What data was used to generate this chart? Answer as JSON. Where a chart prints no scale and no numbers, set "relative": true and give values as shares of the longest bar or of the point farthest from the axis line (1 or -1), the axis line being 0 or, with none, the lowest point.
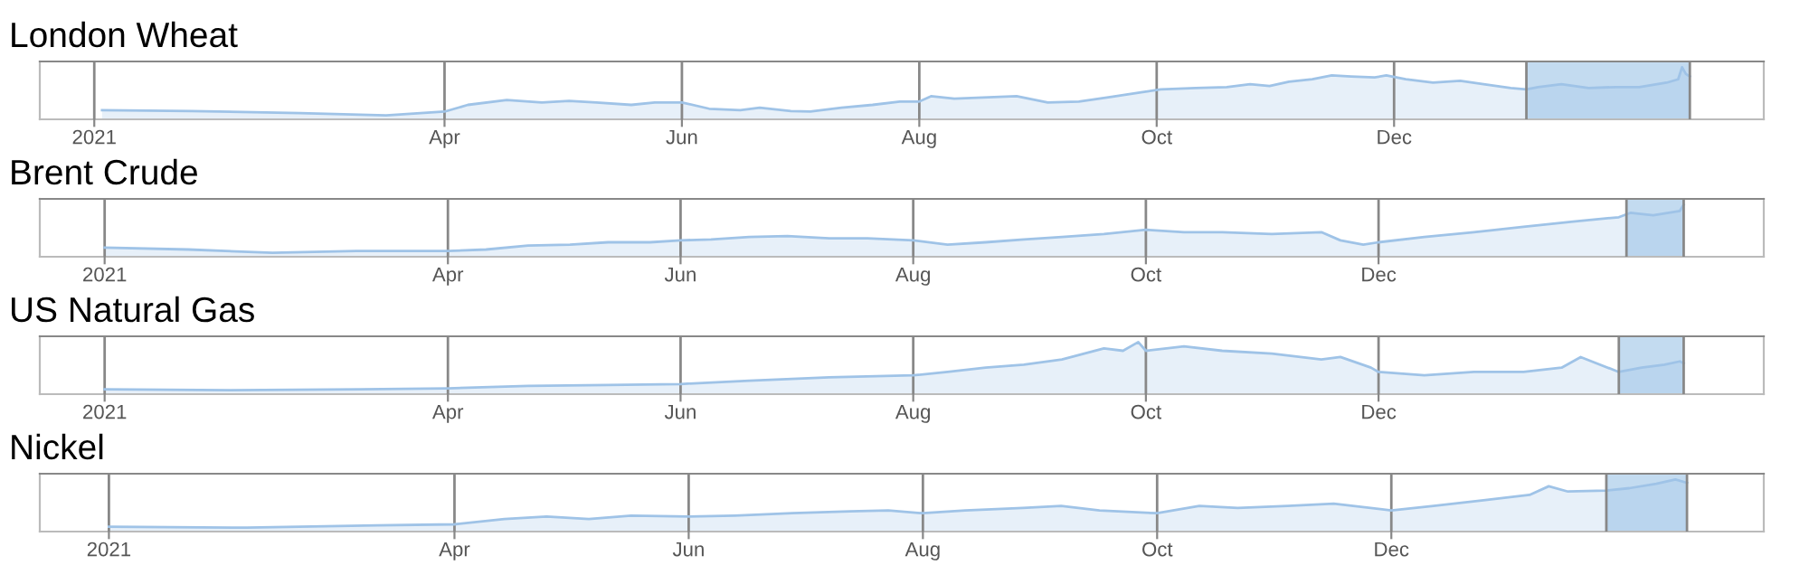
{
  "chart_data": [
    {
      "type": "area",
      "title": "London Wheat",
      "relative": true,
      "xlim": [
        "2020-12-18",
        "2022-03-06"
      ],
      "xticks": [
        {
          "value": "2021-01-01",
          "label": "2021"
        },
        {
          "value": "2021-04-01",
          "label": "Apr"
        },
        {
          "value": "2021-06-01",
          "label": "Jun"
        },
        {
          "value": "2021-08-01",
          "label": "Aug"
        },
        {
          "value": "2021-10-01",
          "label": "Oct"
        },
        {
          "value": "2021-12-01",
          "label": "Dec"
        }
      ],
      "grid": "x",
      "tick_labels": "x",
      "bands": [
        {
          "axis": "x",
          "from": "2022-01-04",
          "to": "2022-02-15",
          "color": "#c3dbf0"
        }
      ],
      "series": [
        {
          "color": "#9fc3e7",
          "x": [
            "2021-01-03",
            "2021-01-26",
            "2021-02-23",
            "2021-03-17",
            "2021-04-01",
            "2021-04-07",
            "2021-04-17",
            "2021-04-26",
            "2021-05-03",
            "2021-05-10",
            "2021-05-19",
            "2021-05-25",
            "2021-06-01",
            "2021-06-08",
            "2021-06-16",
            "2021-06-21",
            "2021-06-29",
            "2021-07-04",
            "2021-07-12",
            "2021-07-20",
            "2021-07-27",
            "2021-08-01",
            "2021-08-04",
            "2021-08-10",
            "2021-08-26",
            "2021-09-03",
            "2021-09-11",
            "2021-09-19",
            "2021-09-27",
            "2021-10-02",
            "2021-10-11",
            "2021-10-19",
            "2021-10-25",
            "2021-10-30",
            "2021-11-04",
            "2021-11-10",
            "2021-11-15",
            "2021-11-20",
            "2021-11-26",
            "2021-11-29",
            "2021-12-04",
            "2021-12-11",
            "2021-12-18",
            "2021-12-24",
            "2021-12-31",
            "2022-01-04",
            "2022-01-07",
            "2022-01-13",
            "2022-01-20",
            "2022-01-27",
            "2022-02-02",
            "2022-02-09",
            "2022-02-12",
            "2022-02-13",
            "2022-02-14",
            "2022-02-15"
          ],
          "values": [
            0.11,
            0.09,
            0.05,
            0.0,
            0.08,
            0.22,
            0.32,
            0.27,
            0.3,
            0.27,
            0.22,
            0.27,
            0.27,
            0.14,
            0.11,
            0.16,
            0.09,
            0.08,
            0.16,
            0.22,
            0.29,
            0.29,
            0.4,
            0.35,
            0.4,
            0.27,
            0.29,
            0.38,
            0.48,
            0.54,
            0.57,
            0.59,
            0.65,
            0.61,
            0.7,
            0.75,
            0.83,
            0.81,
            0.79,
            0.83,
            0.75,
            0.68,
            0.72,
            0.65,
            0.57,
            0.54,
            0.59,
            0.65,
            0.57,
            0.59,
            0.59,
            0.68,
            0.75,
            1.0,
            0.86,
            0.81
          ]
        }
      ]
    },
    {
      "type": "area",
      "title": "Brent Crude",
      "relative": true,
      "xlim": [
        "2020-12-15",
        "2022-03-12"
      ],
      "xticks": [
        {
          "value": "2021-01-01",
          "label": "2021"
        },
        {
          "value": "2021-04-01",
          "label": "Apr"
        },
        {
          "value": "2021-06-01",
          "label": "Jun"
        },
        {
          "value": "2021-08-01",
          "label": "Aug"
        },
        {
          "value": "2021-10-01",
          "label": "Oct"
        },
        {
          "value": "2021-12-01",
          "label": "Dec"
        }
      ],
      "grid": "x",
      "tick_labels": "x",
      "bands": [
        {
          "axis": "x",
          "from": "2022-02-04",
          "to": "2022-02-19",
          "color": "#c3dbf0"
        }
      ],
      "series": [
        {
          "color": "#9fc3e7",
          "x": [
            "2021-01-01",
            "2021-01-23",
            "2021-02-14",
            "2021-03-08",
            "2021-04-01",
            "2021-04-11",
            "2021-04-22",
            "2021-05-03",
            "2021-05-13",
            "2021-05-24",
            "2021-06-01",
            "2021-06-09",
            "2021-06-19",
            "2021-06-29",
            "2021-07-10",
            "2021-07-20",
            "2021-08-01",
            "2021-08-10",
            "2021-08-20",
            "2021-08-30",
            "2021-09-09",
            "2021-09-20",
            "2021-10-01",
            "2021-10-11",
            "2021-10-21",
            "2021-11-03",
            "2021-11-16",
            "2021-11-21",
            "2021-11-27",
            "2021-12-01",
            "2021-12-13",
            "2021-12-26",
            "2022-01-08",
            "2022-01-21",
            "2022-02-02",
            "2022-02-05",
            "2022-02-11",
            "2022-02-18",
            "2022-02-19"
          ],
          "values": [
            0.11,
            0.07,
            0.0,
            0.04,
            0.04,
            0.07,
            0.15,
            0.17,
            0.22,
            0.22,
            0.26,
            0.28,
            0.33,
            0.35,
            0.3,
            0.3,
            0.26,
            0.17,
            0.22,
            0.28,
            0.33,
            0.39,
            0.48,
            0.43,
            0.43,
            0.39,
            0.43,
            0.26,
            0.17,
            0.22,
            0.33,
            0.43,
            0.54,
            0.65,
            0.74,
            0.83,
            0.78,
            0.87,
            1.0
          ]
        }
      ]
    },
    {
      "type": "area",
      "title": "US Natural Gas",
      "relative": true,
      "xlim": [
        "2020-12-15",
        "2022-03-12"
      ],
      "xticks": [
        {
          "value": "2021-01-01",
          "label": "2021"
        },
        {
          "value": "2021-04-01",
          "label": "Apr"
        },
        {
          "value": "2021-06-01",
          "label": "Jun"
        },
        {
          "value": "2021-08-01",
          "label": "Aug"
        },
        {
          "value": "2021-10-01",
          "label": "Oct"
        },
        {
          "value": "2021-12-01",
          "label": "Dec"
        }
      ],
      "grid": "x",
      "tick_labels": "x",
      "bands": [
        {
          "axis": "x",
          "from": "2022-02-02",
          "to": "2022-02-19",
          "color": "#c3dbf0"
        }
      ],
      "series": [
        {
          "color": "#9fc3e7",
          "x": [
            "2021-01-01",
            "2021-02-03",
            "2021-03-09",
            "2021-04-01",
            "2021-04-22",
            "2021-05-13",
            "2021-06-01",
            "2021-06-19",
            "2021-07-10",
            "2021-08-01",
            "2021-08-10",
            "2021-08-20",
            "2021-08-30",
            "2021-09-09",
            "2021-09-20",
            "2021-09-25",
            "2021-09-29",
            "2021-10-01",
            "2021-10-11",
            "2021-10-21",
            "2021-11-03",
            "2021-11-16",
            "2021-11-21",
            "2021-11-29",
            "2021-12-01",
            "2021-12-13",
            "2021-12-26",
            "2022-01-08",
            "2022-01-18",
            "2022-01-23",
            "2022-02-02",
            "2022-02-08",
            "2022-02-14",
            "2022-02-18",
            "2022-02-19"
          ],
          "values": [
            0.02,
            0.0,
            0.02,
            0.04,
            0.09,
            0.11,
            0.13,
            0.2,
            0.27,
            0.31,
            0.38,
            0.47,
            0.53,
            0.64,
            0.87,
            0.82,
            1.0,
            0.82,
            0.91,
            0.82,
            0.76,
            0.64,
            0.69,
            0.47,
            0.38,
            0.31,
            0.38,
            0.38,
            0.47,
            0.69,
            0.38,
            0.47,
            0.53,
            0.6,
            0.56
          ]
        }
      ]
    },
    {
      "type": "area",
      "title": "Nickel",
      "relative": true,
      "xlim": [
        "2020-12-14",
        "2022-03-08"
      ],
      "xticks": [
        {
          "value": "2021-01-01",
          "label": "2021"
        },
        {
          "value": "2021-04-01",
          "label": "Apr"
        },
        {
          "value": "2021-06-01",
          "label": "Jun"
        },
        {
          "value": "2021-08-01",
          "label": "Aug"
        },
        {
          "value": "2021-10-01",
          "label": "Oct"
        },
        {
          "value": "2021-12-01",
          "label": "Dec"
        }
      ],
      "grid": "x",
      "tick_labels": "x",
      "bands": [
        {
          "axis": "x",
          "from": "2022-01-26",
          "to": "2022-02-16",
          "color": "#c3dbf0"
        }
      ],
      "series": [
        {
          "color": "#9fc3e7",
          "x": [
            "2021-01-01",
            "2021-02-06",
            "2021-03-12",
            "2021-04-01",
            "2021-04-14",
            "2021-04-25",
            "2021-05-06",
            "2021-05-17",
            "2021-06-01",
            "2021-06-13",
            "2021-06-28",
            "2021-07-13",
            "2021-07-23",
            "2021-08-01",
            "2021-08-12",
            "2021-08-27",
            "2021-09-06",
            "2021-09-16",
            "2021-10-01",
            "2021-10-12",
            "2021-10-22",
            "2021-11-04",
            "2021-11-16",
            "2021-12-01",
            "2021-12-12",
            "2021-12-25",
            "2022-01-06",
            "2022-01-11",
            "2022-01-16",
            "2022-01-26",
            "2022-02-01",
            "2022-02-08",
            "2022-02-13",
            "2022-02-16"
          ],
          "values": [
            0.02,
            0.0,
            0.05,
            0.07,
            0.18,
            0.23,
            0.18,
            0.25,
            0.23,
            0.25,
            0.3,
            0.34,
            0.36,
            0.3,
            0.36,
            0.41,
            0.45,
            0.36,
            0.3,
            0.45,
            0.41,
            0.45,
            0.5,
            0.36,
            0.45,
            0.57,
            0.68,
            0.86,
            0.75,
            0.77,
            0.82,
            0.91,
            1.0,
            0.93
          ]
        }
      ]
    }
  ]
}
